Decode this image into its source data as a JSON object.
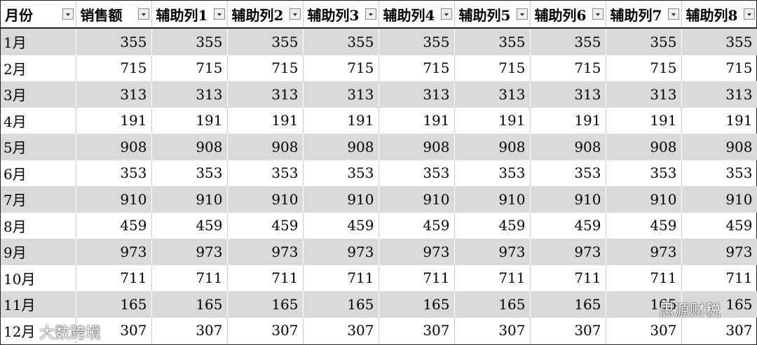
{
  "table": {
    "columns": [
      "月份",
      "销售额",
      "辅助列1",
      "辅助列2",
      "辅助列3",
      "辅助列4",
      "辅助列5",
      "辅助列6",
      "辅助列7",
      "辅助列8"
    ],
    "rows": [
      [
        "1月",
        355,
        355,
        355,
        355,
        355,
        355,
        355,
        355,
        355
      ],
      [
        "2月",
        715,
        715,
        715,
        715,
        715,
        715,
        715,
        715,
        715
      ],
      [
        "3月",
        313,
        313,
        313,
        313,
        313,
        313,
        313,
        313,
        313
      ],
      [
        "4月",
        191,
        191,
        191,
        191,
        191,
        191,
        191,
        191,
        191
      ],
      [
        "5月",
        908,
        908,
        908,
        908,
        908,
        908,
        908,
        908,
        908
      ],
      [
        "6月",
        353,
        353,
        353,
        353,
        353,
        353,
        353,
        353,
        353
      ],
      [
        "7月",
        910,
        910,
        910,
        910,
        910,
        910,
        910,
        910,
        910
      ],
      [
        "8月",
        459,
        459,
        459,
        459,
        459,
        459,
        459,
        459,
        459
      ],
      [
        "9月",
        973,
        973,
        973,
        973,
        973,
        973,
        973,
        973,
        973
      ],
      [
        "10月",
        711,
        711,
        711,
        711,
        711,
        711,
        711,
        711,
        711
      ],
      [
        "11月",
        165,
        165,
        165,
        165,
        165,
        165,
        165,
        165,
        165
      ],
      [
        "12月",
        307,
        307,
        307,
        307,
        307,
        307,
        307,
        307,
        307
      ]
    ]
  },
  "watermarks": [
    "思源财税",
    "大数跨境"
  ]
}
